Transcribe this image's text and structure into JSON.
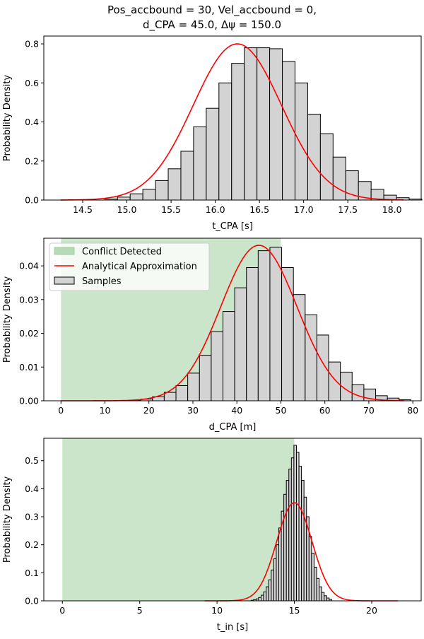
{
  "figure_title": {
    "line1": "Pos_accbound = 30, Vel_accbound = 0,",
    "line2": "d_CPA = 45.0, Δψ = 150.0"
  },
  "legend": {
    "conflict": "Conflict Detected",
    "analytical": "Analytical Approximation",
    "samples": "Samples"
  },
  "colors": {
    "hist_fill": "#d3d3d3",
    "hist_edge": "#000000",
    "curve": "#ff0000",
    "conflict_fill": "#b5dab5"
  },
  "chart_data": [
    {
      "type": "bar",
      "subtype": "histogram_with_density",
      "xlabel": "t_CPA [s]",
      "ylabel": "Probability Density",
      "xlim": [
        14.06,
        18.33
      ],
      "ylim": [
        0,
        0.84
      ],
      "xticks": [
        14.5,
        15.0,
        15.5,
        16.0,
        16.5,
        17.0,
        17.5,
        18.0
      ],
      "xtick_labels": [
        "14.5",
        "15.0",
        "15.5",
        "16.0",
        "16.5",
        "17.0",
        "17.5",
        "18.0"
      ],
      "yticks": [
        0,
        0.2,
        0.4,
        0.6,
        0.8
      ],
      "ytick_labels": [
        "0.0",
        "0.2",
        "0.4",
        "0.6",
        "0.8"
      ],
      "bin_start": 14.75,
      "bin_width": 0.1435,
      "values": [
        0.005,
        0.015,
        0.032,
        0.055,
        0.1,
        0.16,
        0.25,
        0.375,
        0.47,
        0.6,
        0.7,
        0.78,
        0.78,
        0.775,
        0.71,
        0.6,
        0.44,
        0.34,
        0.22,
        0.15,
        0.095,
        0.055,
        0.025,
        0.012,
        0.005
      ],
      "curve": {
        "mean": 16.25,
        "std": 0.5,
        "peak": 0.8,
        "x_range": [
          14.25,
          18.13
        ]
      },
      "conflict": null
    },
    {
      "type": "bar",
      "subtype": "histogram_with_density",
      "xlabel": "d_CPA [m]",
      "ylabel": "Probability Density",
      "xlim": [
        -3.9,
        81.9
      ],
      "ylim": [
        0,
        0.0482
      ],
      "xticks": [
        0,
        10,
        20,
        30,
        40,
        50,
        60,
        70,
        80
      ],
      "xtick_labels": [
        "0",
        "10",
        "20",
        "30",
        "40",
        "50",
        "60",
        "70",
        "80"
      ],
      "yticks": [
        0,
        0.01,
        0.02,
        0.03,
        0.04
      ],
      "ytick_labels": [
        "0.00",
        "0.01",
        "0.02",
        "0.03",
        "0.04"
      ],
      "bin_start": 12.8,
      "bin_width": 2.67,
      "values": [
        0.0001,
        0.0002,
        0.0005,
        0.0012,
        0.0025,
        0.0045,
        0.0082,
        0.0135,
        0.0205,
        0.0265,
        0.0335,
        0.0395,
        0.0445,
        0.0455,
        0.0395,
        0.0315,
        0.0255,
        0.0195,
        0.0115,
        0.0085,
        0.0048,
        0.0035,
        0.0015,
        0.0008,
        0.0003
      ],
      "curve": {
        "mean": 45.0,
        "std": 8.65,
        "peak": 0.0461,
        "x_range": [
          0,
          78
        ]
      },
      "conflict": {
        "x0": 0,
        "x1": 50
      },
      "legend_position": "upper-left"
    },
    {
      "type": "bar",
      "subtype": "histogram_with_density",
      "xlabel": "t_in [s]",
      "ylabel": "Probability Density",
      "xlim": [
        -1.2,
        23.2
      ],
      "ylim": [
        0,
        0.58
      ],
      "xticks": [
        0,
        5,
        10,
        15,
        20
      ],
      "xtick_labels": [
        "0",
        "5",
        "10",
        "15",
        "20"
      ],
      "yticks": [
        0,
        0.1,
        0.2,
        0.3,
        0.4,
        0.5
      ],
      "ytick_labels": [
        "0.0",
        "0.1",
        "0.2",
        "0.3",
        "0.4",
        "0.5"
      ],
      "bin_start": 12.2,
      "bin_width": 0.163,
      "values": [
        0.002,
        0.004,
        0.007,
        0.012,
        0.02,
        0.032,
        0.05,
        0.075,
        0.11,
        0.15,
        0.2,
        0.26,
        0.32,
        0.38,
        0.43,
        0.47,
        0.51,
        0.555,
        0.53,
        0.48,
        0.43,
        0.37,
        0.3,
        0.23,
        0.17,
        0.12,
        0.08,
        0.05,
        0.03,
        0.018,
        0.01,
        0.005
      ],
      "curve": {
        "mean": 15.0,
        "std": 1.14,
        "peak": 0.35,
        "x_range": [
          9.2,
          21.7
        ]
      },
      "conflict": {
        "x0": 0,
        "x1": 15
      }
    }
  ]
}
